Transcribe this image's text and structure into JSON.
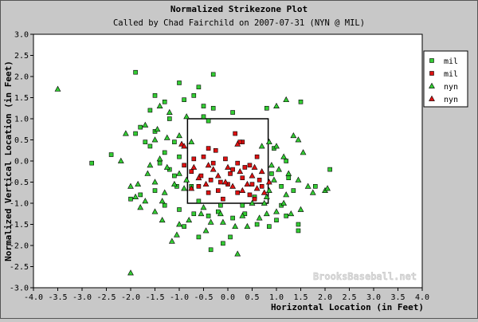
{
  "chart_data": {
    "type": "scatter",
    "title": "Normalized Strikezone Plot",
    "subtitle": "Called by Chad Fairchild on 2007-07-31 (NYN @ MIL)",
    "xlabel": "Horizontal Location (in Feet)",
    "ylabel": "Normalized Vertical Location (in Feet)",
    "xlim": [
      -4.0,
      4.0
    ],
    "ylim": [
      -3.0,
      3.0
    ],
    "x_ticks": [
      "-4.0",
      "-3.5",
      "-3.0",
      "-2.5",
      "-2.0",
      "-1.5",
      "-1.0",
      "-0.5",
      "0.0",
      "0.5",
      "1.0",
      "1.5",
      "2.0",
      "2.5",
      "3.0",
      "3.5",
      "4.0"
    ],
    "y_ticks": [
      "3.0",
      "2.5",
      "2.0",
      "1.5",
      "1.0",
      "0.5",
      "0.0",
      "-0.5",
      "-1.0",
      "-1.5",
      "-2.0",
      "-2.5",
      "-3.0"
    ],
    "grid": false,
    "legend_position": "top-right",
    "strike_zone": {
      "x": [
        -0.83,
        0.83
      ],
      "y": [
        -1.0,
        1.0
      ]
    },
    "watermark": "BrooksBaseball.net",
    "series": [
      {
        "name": "mil",
        "marker": "square",
        "color": "#33cc33",
        "points": [
          [
            -1.9,
            2.1
          ],
          [
            -0.3,
            2.05
          ],
          [
            -1.0,
            1.85
          ],
          [
            -0.6,
            1.75
          ],
          [
            -1.5,
            1.55
          ],
          [
            -0.7,
            1.55
          ],
          [
            -1.3,
            1.4
          ],
          [
            -0.9,
            1.45
          ],
          [
            -0.5,
            1.3
          ],
          [
            -0.3,
            1.25
          ],
          [
            -1.6,
            1.2
          ],
          [
            0.1,
            1.15
          ],
          [
            0.8,
            1.25
          ],
          [
            1.5,
            1.4
          ],
          [
            -1.2,
            1.0
          ],
          [
            -0.4,
            0.95
          ],
          [
            -1.8,
            0.8
          ],
          [
            -1.5,
            0.7
          ],
          [
            -1.9,
            0.65
          ],
          [
            -1.1,
            0.45
          ],
          [
            -1.6,
            0.35
          ],
          [
            -1.3,
            0.2
          ],
          [
            -1.0,
            0.1
          ],
          [
            -1.4,
            -0.05
          ],
          [
            -1.2,
            -0.2
          ],
          [
            -1.1,
            -0.35
          ],
          [
            -2.8,
            -0.05
          ],
          [
            -2.4,
            0.15
          ],
          [
            -1.8,
            -0.8
          ],
          [
            -1.5,
            -0.7
          ],
          [
            -1.3,
            -1.05
          ],
          [
            -1.0,
            -1.15
          ],
          [
            -0.7,
            -1.25
          ],
          [
            -0.4,
            -1.3
          ],
          [
            -0.2,
            -1.2
          ],
          [
            0.1,
            -1.35
          ],
          [
            0.35,
            -1.25
          ],
          [
            0.6,
            -1.5
          ],
          [
            0.85,
            -1.55
          ],
          [
            1.0,
            -1.4
          ],
          [
            1.2,
            -1.3
          ],
          [
            1.45,
            -1.65
          ],
          [
            -0.9,
            -1.55
          ],
          [
            -0.6,
            -1.8
          ],
          [
            -0.35,
            -2.1
          ],
          [
            -0.1,
            -1.95
          ],
          [
            0.05,
            -1.8
          ],
          [
            0.9,
            -0.3
          ],
          [
            1.1,
            -0.6
          ],
          [
            1.35,
            -0.7
          ],
          [
            1.25,
            -0.4
          ],
          [
            0.95,
            0.3
          ],
          [
            1.2,
            0.0
          ],
          [
            2.1,
            -0.2
          ],
          [
            1.45,
            -1.5
          ],
          [
            -1.05,
            -0.6
          ],
          [
            -0.6,
            -0.95
          ],
          [
            -0.15,
            -1.05
          ],
          [
            0.3,
            -1.05
          ],
          [
            0.55,
            -0.85
          ],
          [
            -0.5,
            1.05
          ],
          [
            -1.7,
            0.45
          ],
          [
            -2.0,
            -0.9
          ],
          [
            1.8,
            -0.6
          ],
          [
            1.1,
            -1.05
          ],
          [
            -0.75,
            -0.6
          ]
        ]
      },
      {
        "name": "mil",
        "marker": "square",
        "color": "#dd1111",
        "points": [
          [
            0.3,
            0.45
          ],
          [
            0.15,
            0.65
          ],
          [
            -0.4,
            0.3
          ],
          [
            -0.5,
            0.1
          ],
          [
            -0.7,
            0.05
          ],
          [
            -0.3,
            -0.05
          ],
          [
            -0.05,
            0.05
          ],
          [
            0.2,
            -0.05
          ],
          [
            0.45,
            -0.1
          ],
          [
            0.6,
            0.1
          ],
          [
            -0.55,
            -0.35
          ],
          [
            -0.35,
            -0.45
          ],
          [
            -0.15,
            -0.5
          ],
          [
            0.05,
            -0.3
          ],
          [
            0.3,
            -0.4
          ],
          [
            0.5,
            -0.55
          ],
          [
            0.7,
            -0.6
          ],
          [
            -0.6,
            -0.6
          ],
          [
            -0.4,
            -0.75
          ],
          [
            -0.2,
            -0.7
          ],
          [
            0.0,
            -0.55
          ],
          [
            0.2,
            -0.75
          ],
          [
            0.45,
            -0.8
          ],
          [
            0.65,
            -0.45
          ],
          [
            -0.75,
            -0.25
          ],
          [
            0.1,
            -0.2
          ],
          [
            0.35,
            -0.15
          ],
          [
            -0.9,
            -0.1
          ],
          [
            -0.25,
            0.25
          ],
          [
            0.25,
            0.45
          ],
          [
            -0.1,
            -0.9
          ],
          [
            0.55,
            -0.9
          ]
        ]
      },
      {
        "name": "nyn",
        "marker": "triangle",
        "color": "#33cc33",
        "points": [
          [
            -3.5,
            1.7
          ],
          [
            -1.4,
            1.3
          ],
          [
            -1.2,
            1.15
          ],
          [
            -0.85,
            1.05
          ],
          [
            1.0,
            1.3
          ],
          [
            1.2,
            1.45
          ],
          [
            -1.7,
            0.85
          ],
          [
            -1.45,
            0.75
          ],
          [
            -1.25,
            0.55
          ],
          [
            -1.0,
            0.6
          ],
          [
            -1.5,
            0.5
          ],
          [
            -2.1,
            0.65
          ],
          [
            -0.75,
            0.45
          ],
          [
            0.85,
            0.45
          ],
          [
            1.0,
            0.35
          ],
          [
            1.35,
            0.6
          ],
          [
            1.45,
            0.5
          ],
          [
            1.55,
            0.2
          ],
          [
            -2.2,
            0.0
          ],
          [
            -1.6,
            -0.1
          ],
          [
            -1.4,
            0.05
          ],
          [
            -1.25,
            -0.15
          ],
          [
            -1.0,
            -0.3
          ],
          [
            -0.85,
            -0.45
          ],
          [
            -1.1,
            -0.55
          ],
          [
            -1.3,
            -0.75
          ],
          [
            -1.5,
            -0.5
          ],
          [
            -1.65,
            -0.3
          ],
          [
            -1.85,
            -0.55
          ],
          [
            -2.0,
            -0.6
          ],
          [
            -1.9,
            -0.85
          ],
          [
            -1.7,
            -0.95
          ],
          [
            -1.8,
            -1.1
          ],
          [
            -1.5,
            -1.2
          ],
          [
            -1.35,
            -1.4
          ],
          [
            -1.0,
            -1.5
          ],
          [
            -0.8,
            -1.4
          ],
          [
            -0.55,
            -1.25
          ],
          [
            -0.35,
            -1.45
          ],
          [
            -0.1,
            -1.45
          ],
          [
            0.15,
            -1.55
          ],
          [
            0.4,
            -1.55
          ],
          [
            0.65,
            -1.35
          ],
          [
            0.8,
            -1.25
          ],
          [
            1.0,
            -1.2
          ],
          [
            1.15,
            -1.0
          ],
          [
            1.3,
            -1.25
          ],
          [
            1.5,
            -1.15
          ],
          [
            0.85,
            -0.7
          ],
          [
            0.95,
            -0.45
          ],
          [
            1.05,
            -0.2
          ],
          [
            1.25,
            -0.3
          ],
          [
            1.45,
            -0.45
          ],
          [
            1.65,
            -0.6
          ],
          [
            1.75,
            -0.75
          ],
          [
            2.0,
            -0.7
          ],
          [
            2.05,
            -0.65
          ],
          [
            0.9,
            -0.1
          ],
          [
            1.15,
            0.1
          ],
          [
            0.7,
            0.35
          ],
          [
            -0.5,
            -1.1
          ],
          [
            -0.15,
            -1.25
          ],
          [
            0.3,
            -1.3
          ],
          [
            0.5,
            -1.0
          ],
          [
            0.75,
            -1.0
          ],
          [
            -2.0,
            -2.65
          ],
          [
            0.2,
            -2.2
          ],
          [
            -1.05,
            -1.75
          ],
          [
            -1.15,
            -1.9
          ],
          [
            -0.45,
            -1.65
          ],
          [
            0.8,
            -0.85
          ],
          [
            1.2,
            -0.8
          ],
          [
            -1.35,
            -0.95
          ],
          [
            -0.9,
            -0.65
          ]
        ]
      },
      {
        "name": "nyn",
        "marker": "triangle",
        "color": "#dd1111",
        "points": [
          [
            -0.95,
            0.4
          ],
          [
            -0.9,
            0.35
          ],
          [
            0.2,
            0.4
          ],
          [
            -0.7,
            -0.15
          ],
          [
            -0.6,
            -0.4
          ],
          [
            -0.45,
            -0.55
          ],
          [
            -0.2,
            -0.35
          ],
          [
            0.0,
            -0.15
          ],
          [
            0.25,
            -0.25
          ],
          [
            0.4,
            -0.55
          ],
          [
            0.5,
            -0.35
          ],
          [
            0.7,
            -0.25
          ],
          [
            0.75,
            -0.75
          ],
          [
            -0.3,
            -0.2
          ],
          [
            0.1,
            -0.6
          ],
          [
            0.3,
            -0.7
          ],
          [
            -0.75,
            -0.65
          ],
          [
            -0.05,
            -0.5
          ],
          [
            0.55,
            -0.15
          ],
          [
            0.85,
            -0.5
          ],
          [
            0.6,
            -0.65
          ],
          [
            -0.4,
            -0.1
          ]
        ]
      }
    ]
  }
}
